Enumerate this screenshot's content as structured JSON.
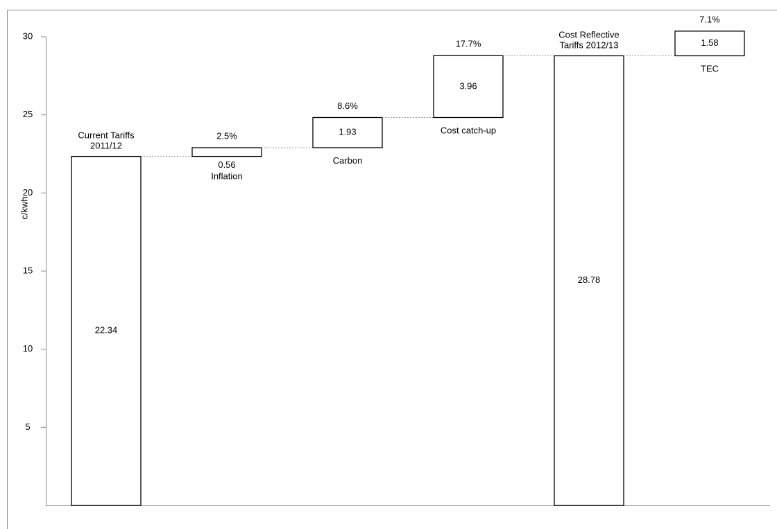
{
  "chart_data": {
    "type": "waterfall",
    "y_label": "c/kwh",
    "categories": [
      "Current Tariffs\n2011/12",
      "Inflation",
      "Carbon",
      "Cost catch-up",
      "Cost Reflective\nTariffs 2012/13",
      "TEC"
    ],
    "values": [
      22.34,
      0.56,
      1.93,
      3.96,
      28.78,
      1.58
    ],
    "change_values": [
      null,
      2.5,
      8.6,
      17.7,
      null,
      7.1
    ],
    "change_labels": [
      null,
      "2.5%",
      "8.6%",
      "17.7%",
      null,
      "7.1%"
    ],
    "color": "#ffffff",
    "ylim": [
      0,
      30
    ],
    "yticks": [
      5,
      10,
      15,
      20,
      25,
      30
    ]
  }
}
